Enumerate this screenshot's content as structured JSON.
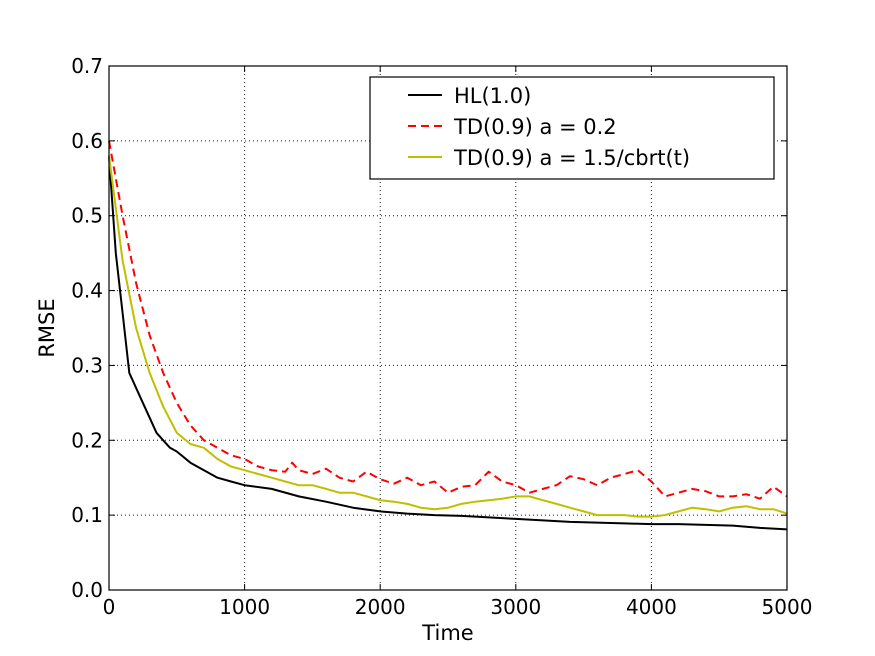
{
  "chart_data": {
    "type": "line",
    "title": "",
    "xlabel": "Time",
    "ylabel": "RMSE",
    "xlim": [
      0,
      5000
    ],
    "ylim": [
      0.0,
      0.7
    ],
    "xticks": [
      0,
      1000,
      2000,
      3000,
      4000,
      5000
    ],
    "xtick_labels": [
      "0",
      "1000",
      "2000",
      "3000",
      "4000",
      "5000"
    ],
    "yticks": [
      0.0,
      0.1,
      0.2,
      0.3,
      0.4,
      0.5,
      0.6,
      0.7
    ],
    "ytick_labels": [
      "0.0",
      "0.1",
      "0.2",
      "0.3",
      "0.4",
      "0.5",
      "0.6",
      "0.7"
    ],
    "grid": true,
    "legend_position": "top-right",
    "series": [
      {
        "name": "HL(1.0)",
        "color": "#000000",
        "style": "solid",
        "x": [
          0,
          50,
          100,
          150,
          200,
          250,
          300,
          350,
          400,
          450,
          500,
          600,
          700,
          800,
          900,
          1000,
          1200,
          1400,
          1600,
          1800,
          2000,
          2200,
          2400,
          2600,
          2800,
          3000,
          3200,
          3400,
          3600,
          3800,
          4000,
          4200,
          4400,
          4600,
          4800,
          5000
        ],
        "values": [
          0.58,
          0.45,
          0.37,
          0.29,
          0.27,
          0.25,
          0.23,
          0.21,
          0.2,
          0.19,
          0.185,
          0.17,
          0.16,
          0.15,
          0.145,
          0.14,
          0.135,
          0.125,
          0.118,
          0.11,
          0.105,
          0.102,
          0.1,
          0.099,
          0.097,
          0.095,
          0.093,
          0.091,
          0.09,
          0.089,
          0.088,
          0.088,
          0.087,
          0.086,
          0.083,
          0.081
        ]
      },
      {
        "name": "TD(0.9) a = 0.2",
        "color": "#ff0000",
        "style": "dashed",
        "x": [
          0,
          100,
          200,
          300,
          400,
          500,
          600,
          700,
          800,
          900,
          1000,
          1100,
          1200,
          1300,
          1350,
          1400,
          1500,
          1600,
          1700,
          1800,
          1900,
          2000,
          2100,
          2200,
          2300,
          2400,
          2500,
          2600,
          2700,
          2800,
          2900,
          3000,
          3100,
          3200,
          3300,
          3400,
          3500,
          3600,
          3700,
          3800,
          3900,
          4000,
          4100,
          4200,
          4300,
          4400,
          4500,
          4600,
          4700,
          4800,
          4900,
          5000
        ],
        "values": [
          0.6,
          0.5,
          0.41,
          0.34,
          0.29,
          0.25,
          0.22,
          0.2,
          0.19,
          0.18,
          0.175,
          0.165,
          0.16,
          0.158,
          0.17,
          0.16,
          0.155,
          0.162,
          0.15,
          0.145,
          0.158,
          0.148,
          0.142,
          0.15,
          0.14,
          0.145,
          0.13,
          0.138,
          0.14,
          0.158,
          0.145,
          0.14,
          0.13,
          0.135,
          0.14,
          0.152,
          0.148,
          0.14,
          0.15,
          0.155,
          0.16,
          0.145,
          0.125,
          0.13,
          0.135,
          0.132,
          0.125,
          0.125,
          0.128,
          0.122,
          0.138,
          0.125
        ]
      },
      {
        "name": "TD(0.9) a = 1.5/cbrt(t)",
        "color": "#bfbf00",
        "style": "solid",
        "x": [
          0,
          100,
          200,
          300,
          400,
          500,
          600,
          700,
          800,
          900,
          1000,
          1100,
          1200,
          1300,
          1400,
          1500,
          1600,
          1700,
          1800,
          1900,
          2000,
          2100,
          2200,
          2300,
          2400,
          2500,
          2600,
          2700,
          2800,
          2900,
          3000,
          3100,
          3200,
          3300,
          3400,
          3500,
          3600,
          3700,
          3800,
          3900,
          4000,
          4100,
          4200,
          4300,
          4400,
          4500,
          4600,
          4700,
          4800,
          4900,
          5000
        ],
        "values": [
          0.58,
          0.44,
          0.35,
          0.29,
          0.245,
          0.21,
          0.195,
          0.19,
          0.175,
          0.165,
          0.16,
          0.155,
          0.15,
          0.145,
          0.14,
          0.14,
          0.135,
          0.13,
          0.13,
          0.125,
          0.12,
          0.118,
          0.115,
          0.11,
          0.108,
          0.11,
          0.115,
          0.118,
          0.12,
          0.122,
          0.125,
          0.125,
          0.12,
          0.115,
          0.11,
          0.105,
          0.1,
          0.1,
          0.1,
          0.098,
          0.098,
          0.1,
          0.105,
          0.11,
          0.108,
          0.105,
          0.11,
          0.112,
          0.108,
          0.108,
          0.102
        ]
      }
    ]
  }
}
